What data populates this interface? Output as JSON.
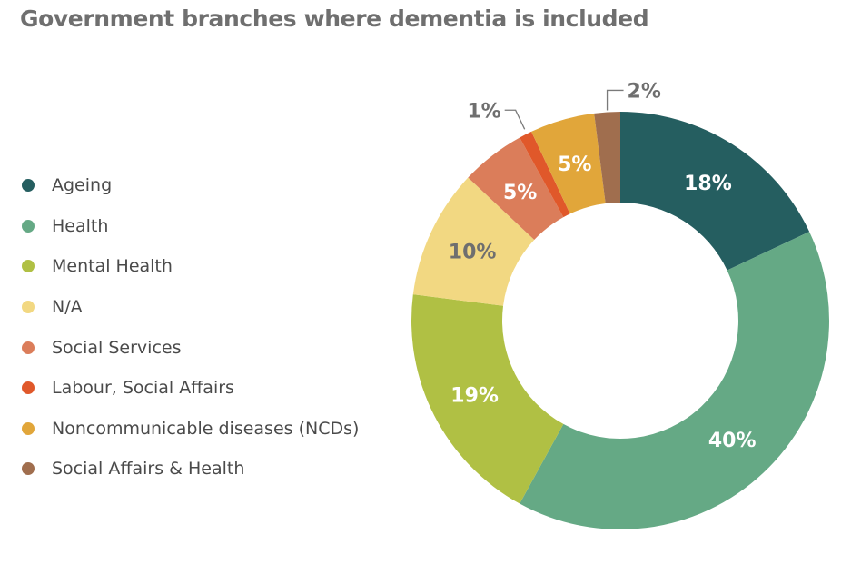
{
  "chart_data": {
    "type": "pie",
    "title": "Government branches where dementia is included",
    "legend_position": "left",
    "categories": [
      "Ageing",
      "Health",
      "Mental Health",
      "N/A",
      "Social Services",
      "Labour, Social Affairs",
      "Noncommunicable diseases (NCDs)",
      "Social Affairs & Health"
    ],
    "values": [
      18,
      40,
      19,
      10,
      5,
      1,
      5,
      2
    ],
    "labels": [
      "18%",
      "40%",
      "19%",
      "10%",
      "5%",
      "1%",
      "5%",
      "2%"
    ],
    "colors": [
      "#255e60",
      "#65a985",
      "#b0c044",
      "#f2d882",
      "#db7d5a",
      "#e0582a",
      "#e1a63a",
      "#a06e4e"
    ]
  }
}
